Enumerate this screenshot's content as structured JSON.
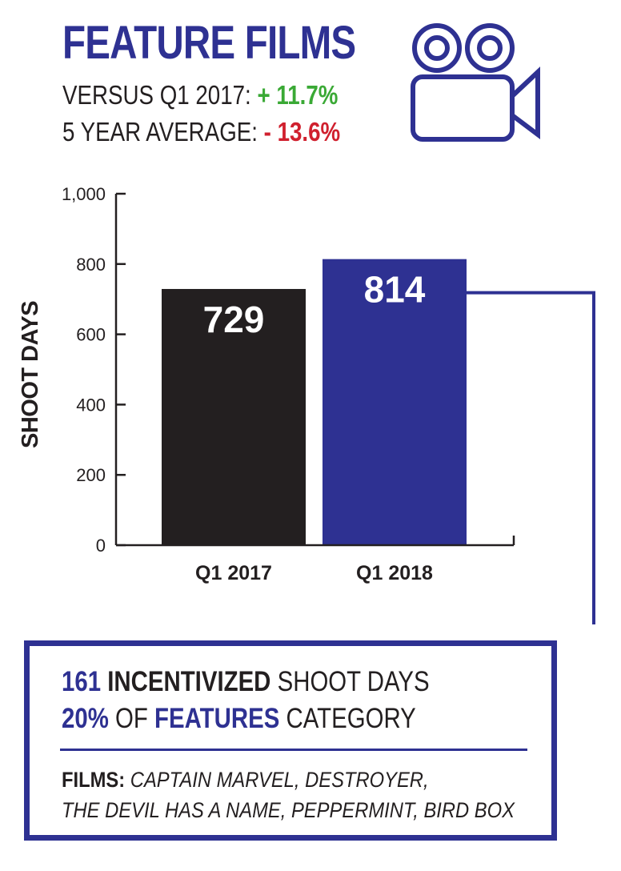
{
  "header": {
    "title": "FEATURE FILMS",
    "versus_label": "VERSUS Q1 2017:",
    "versus_value": "+ 11.7%",
    "average_label": "5 YEAR AVERAGE:",
    "average_value": "- 13.6%",
    "icon": "film-camera-icon"
  },
  "colors": {
    "brand_blue": "#2e3192",
    "bar_dark": "#231f20",
    "positive": "#3aa935",
    "negative": "#d0202e"
  },
  "chart_data": {
    "type": "bar",
    "categories": [
      "Q1 2017",
      "Q1 2018"
    ],
    "values": [
      729,
      814
    ],
    "data_labels": [
      "729",
      "814"
    ],
    "ylabel": "SHOOT DAYS",
    "xlabel": "",
    "ylim": [
      0,
      1000
    ],
    "yticks": [
      0,
      200,
      400,
      600,
      800,
      1000
    ],
    "ytick_labels": [
      "0",
      "200",
      "400",
      "600",
      "800",
      "1,000"
    ],
    "bar_colors": [
      "#231f20",
      "#2e3192"
    ],
    "grid": false
  },
  "callout": {
    "incentivized_number": "161",
    "incentivized_bold": "INCENTIVIZED",
    "incentivized_rest": "SHOOT DAYS",
    "percent": "20%",
    "of_text": "OF",
    "features_bold": "FEATURES",
    "category_text": "CATEGORY",
    "films_label": "FILMS:",
    "films_line1": "CAPTAIN MARVEL, DESTROYER,",
    "films_line2": "THE DEVIL HAS A NAME, PEPPERMINT, BIRD BOX"
  }
}
